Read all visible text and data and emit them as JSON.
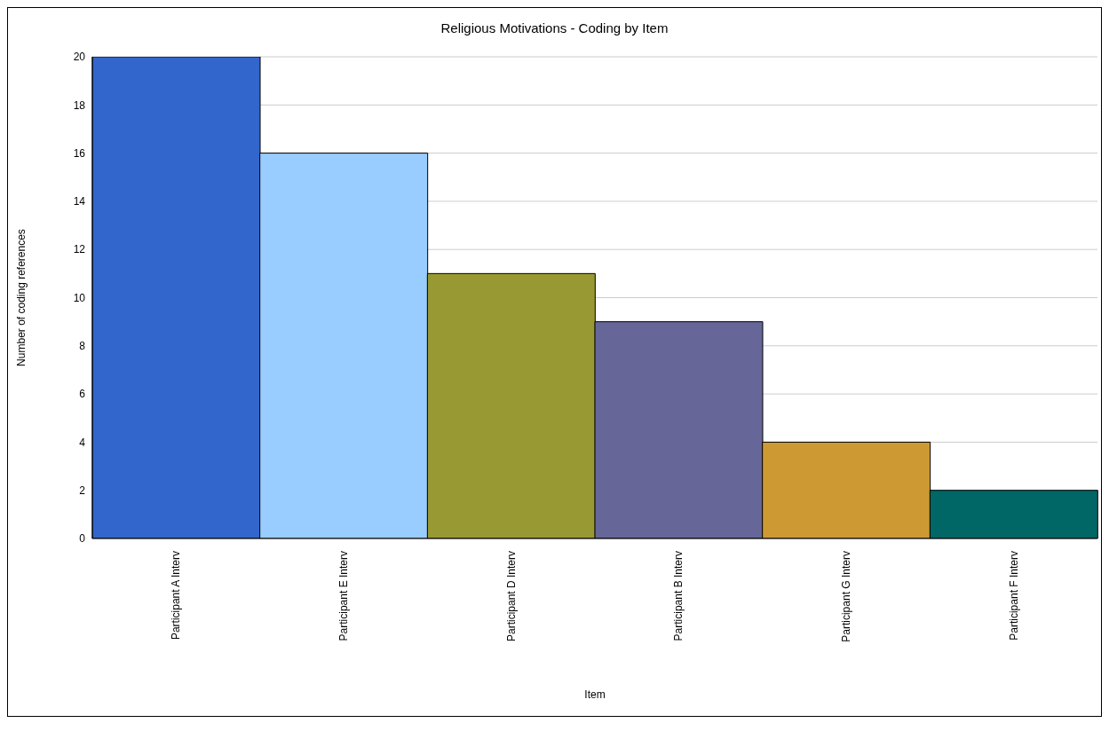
{
  "chart_data": {
    "type": "bar",
    "title": "Religious Motivations - Coding by Item",
    "xlabel": "Item",
    "ylabel": "Number of coding references",
    "categories": [
      "Participant A Interv",
      "Participant E Interv",
      "Participant D Interv",
      "Participant B Interv",
      "Participant G Interv",
      "Participant F Interv"
    ],
    "values": [
      20,
      16,
      11,
      9,
      4,
      2
    ],
    "colors": [
      "#3366cc",
      "#99ccff",
      "#999933",
      "#666699",
      "#cc9933",
      "#006666"
    ],
    "ylim": [
      0,
      20
    ],
    "yticks": [
      0,
      2,
      4,
      6,
      8,
      10,
      12,
      14,
      16,
      18,
      20
    ],
    "grid": "y"
  }
}
